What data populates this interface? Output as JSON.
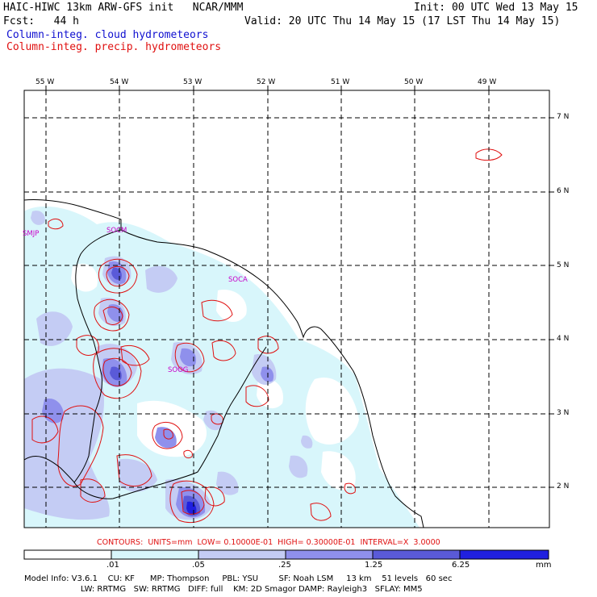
{
  "header": {
    "model_title": "HAIC-HIWC 13km ARW-GFS init   NCAR/MMM",
    "init": "Init: 00 UTC Wed 13 May 15",
    "fcst": "Fcst:   44 h",
    "valid": "Valid: 20 UTC Thu 14 May 15 (17 LST Thu 14 May 15)",
    "field1": "Column-integ. cloud hydrometeors",
    "field2": "Column-integ. precip. hydrometeors"
  },
  "colors": {
    "field1": "#1010d0",
    "field2": "#e01010",
    "contour": "#e01010",
    "station": "#c800c8",
    "fill_1": "#d8f6fb",
    "fill_2": "#c4ccf4",
    "fill_3": "#8f90ec",
    "fill_4": "#5a5ad8",
    "fill_5": "#2020e0"
  },
  "map": {
    "lon_labels": [
      "55 W",
      "54 W",
      "53 W",
      "52 W",
      "51 W",
      "50 W",
      "49 W"
    ],
    "lat_labels": [
      "7 N",
      "6 N",
      "5 N",
      "4 N",
      "3 N",
      "2 N"
    ],
    "stations": [
      "SMJP",
      "SOCM",
      "SOCA",
      "SOOG"
    ]
  },
  "contour_note": "CONTOURS:  UNITS=mm  LOW= 0.10000E-01  HIGH= 0.30000E-01  INTERVAL=X  3.0000",
  "colorbar": {
    "ticks": [
      ".01",
      ".05",
      ".25",
      "1.25",
      "6.25"
    ],
    "unit": "mm"
  },
  "model_info": {
    "line1": "Model Info: V3.6.1    CU: KF      MP: Thompson     PBL: YSU        SF: Noah LSM     13 km    51 levels   60 sec",
    "line2": "                      LW: RRTMG   SW: RRTMG   DIFF: full    KM: 2D Smagor DAMP: Rayleigh3   SFLAY: MM5"
  }
}
